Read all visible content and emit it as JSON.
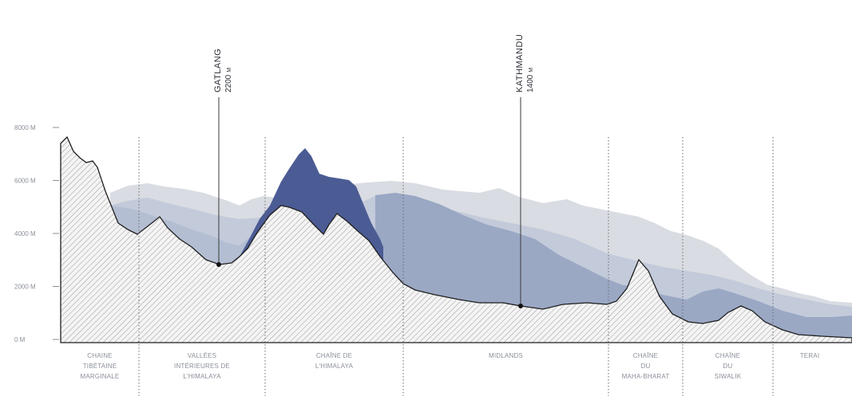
{
  "y_axis": {
    "ticks": [
      {
        "label": "8000 M",
        "value": 8000
      },
      {
        "label": "6000 M",
        "value": 6000
      },
      {
        "label": "4000 M",
        "value": 4000
      },
      {
        "label": "2000 M",
        "value": 2000
      },
      {
        "label": "0 M",
        "value": 0
      }
    ]
  },
  "regions": [
    {
      "lines": [
        "CHAINE",
        "TIBÉTAINE",
        "MARGINALE"
      ]
    },
    {
      "lines": [
        "VALLÉES",
        "INTÉRIEURES DE",
        "L'HIMALAYA"
      ]
    },
    {
      "lines": [
        "CHAÎNE DE",
        "L'HIMALAYA"
      ]
    },
    {
      "lines": [
        "MIDLANDS"
      ]
    },
    {
      "lines": [
        "CHAÎNE",
        "DU",
        "MAHA-BHARAT"
      ]
    },
    {
      "lines": [
        "CHAÎNE",
        "DU",
        "SIWALIK"
      ]
    },
    {
      "lines": [
        "TERAI"
      ]
    }
  ],
  "markers": [
    {
      "name": "GATLANG",
      "altitude": "2200",
      "unit": "M"
    },
    {
      "name": "KATHMANDU",
      "altitude": "1400",
      "unit": "M"
    }
  ],
  "colors": {
    "ground_line": "#1e1e1e",
    "hatch": "#9a9a9a",
    "back_range": "#d3d6dd",
    "mid_range": "#b9c2d3",
    "front_range": "#93a2c0",
    "high_himalaya": "#4a5a92",
    "text": "#8a8f99"
  }
}
